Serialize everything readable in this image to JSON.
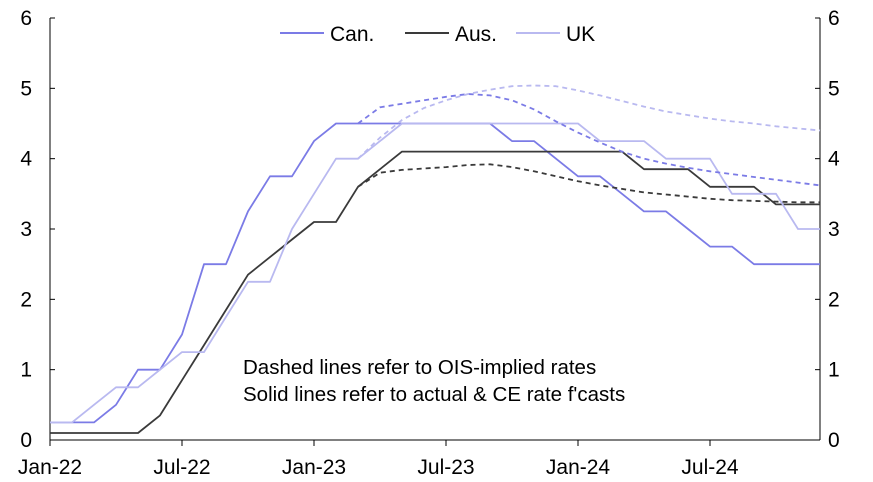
{
  "chart_data": {
    "type": "line",
    "title": "",
    "xlabel": "",
    "ylabel": "",
    "x_tick_labels": [
      "Jan-22",
      "Jul-22",
      "Jan-23",
      "Jul-23",
      "Jan-24",
      "Jul-24"
    ],
    "x_tick_months": [
      0,
      6,
      12,
      18,
      24,
      30
    ],
    "x_range_months": [
      0,
      35
    ],
    "ylim": [
      0,
      6
    ],
    "y_ticks": [
      "0",
      "1",
      "2",
      "3",
      "4",
      "5",
      "6"
    ],
    "legend": [
      "Can.",
      "Aus.",
      "UK"
    ],
    "legend_position": "top-center",
    "colors": {
      "can": "#7B7BE6",
      "aus": "#3a3a3a",
      "uk": "#B9B9F0",
      "axis": "#000000"
    },
    "note_lines": [
      "Dashed lines refer to OIS-implied rates",
      "Solid lines refer to actual & CE rate f'casts"
    ],
    "series": [
      {
        "name": "Can.",
        "key": "can",
        "style": "solid",
        "x": [
          0,
          1,
          2,
          3,
          4,
          5,
          6,
          7,
          8,
          9,
          10,
          11,
          12,
          13,
          14,
          15,
          16,
          17,
          18,
          19,
          20,
          21,
          22,
          23,
          24,
          25,
          26,
          27,
          28,
          29,
          30,
          31,
          32,
          33,
          34,
          35
        ],
        "values": [
          0.25,
          0.25,
          0.25,
          0.5,
          1.0,
          1.0,
          1.5,
          2.5,
          2.5,
          3.25,
          3.75,
          3.75,
          4.25,
          4.5,
          4.5,
          4.5,
          4.5,
          4.5,
          4.5,
          4.5,
          4.5,
          4.25,
          4.25,
          4.0,
          3.75,
          3.75,
          3.5,
          3.25,
          3.25,
          3.0,
          2.75,
          2.75,
          2.5,
          2.5,
          2.5,
          2.5
        ]
      },
      {
        "name": "Aus.",
        "key": "aus",
        "style": "solid",
        "x": [
          0,
          1,
          2,
          3,
          4,
          5,
          6,
          7,
          8,
          9,
          10,
          11,
          12,
          13,
          14,
          15,
          16,
          17,
          18,
          19,
          20,
          21,
          22,
          23,
          24,
          25,
          26,
          27,
          28,
          29,
          30,
          31,
          32,
          33,
          34,
          35
        ],
        "values": [
          0.1,
          0.1,
          0.1,
          0.1,
          0.1,
          0.35,
          0.85,
          1.35,
          1.85,
          2.35,
          2.6,
          2.85,
          3.1,
          3.1,
          3.6,
          3.85,
          4.1,
          4.1,
          4.1,
          4.1,
          4.1,
          4.1,
          4.1,
          4.1,
          4.1,
          4.1,
          4.1,
          3.85,
          3.85,
          3.85,
          3.6,
          3.6,
          3.6,
          3.35,
          3.35,
          3.35
        ]
      },
      {
        "name": "UK",
        "key": "uk",
        "style": "solid",
        "x": [
          0,
          1,
          2,
          3,
          4,
          5,
          6,
          7,
          8,
          9,
          10,
          11,
          12,
          13,
          14,
          15,
          16,
          17,
          18,
          19,
          20,
          21,
          22,
          23,
          24,
          25,
          26,
          27,
          28,
          29,
          30,
          31,
          32,
          33,
          34,
          35
        ],
        "values": [
          0.25,
          0.25,
          0.5,
          0.75,
          0.75,
          1.0,
          1.25,
          1.25,
          1.75,
          2.25,
          2.25,
          3.0,
          3.5,
          4.0,
          4.0,
          4.25,
          4.5,
          4.5,
          4.5,
          4.5,
          4.5,
          4.5,
          4.5,
          4.5,
          4.5,
          4.25,
          4.25,
          4.25,
          4.0,
          4.0,
          4.0,
          3.5,
          3.5,
          3.5,
          3.0,
          3.0
        ]
      },
      {
        "name": "Can. OIS",
        "key": "can",
        "style": "dashed",
        "x": [
          14,
          15,
          16,
          17,
          18,
          19,
          20,
          21,
          22,
          23,
          24,
          25,
          26,
          27,
          28,
          29,
          30,
          31,
          32,
          33,
          34,
          35
        ],
        "values": [
          4.5,
          4.73,
          4.78,
          4.83,
          4.88,
          4.92,
          4.9,
          4.83,
          4.7,
          4.53,
          4.37,
          4.23,
          4.1,
          4.0,
          3.93,
          3.87,
          3.82,
          3.78,
          3.74,
          3.7,
          3.66,
          3.62
        ]
      },
      {
        "name": "Aus. OIS",
        "key": "aus",
        "style": "dashed",
        "x": [
          14,
          15,
          16,
          17,
          18,
          19,
          20,
          21,
          22,
          23,
          24,
          25,
          26,
          27,
          28,
          29,
          30,
          31,
          32,
          33,
          34,
          35
        ],
        "values": [
          3.6,
          3.8,
          3.84,
          3.86,
          3.88,
          3.91,
          3.92,
          3.88,
          3.82,
          3.75,
          3.68,
          3.62,
          3.57,
          3.52,
          3.49,
          3.46,
          3.43,
          3.41,
          3.4,
          3.39,
          3.38,
          3.38
        ]
      },
      {
        "name": "UK OIS",
        "key": "uk",
        "style": "dashed",
        "x": [
          14,
          15,
          16,
          17,
          18,
          19,
          20,
          21,
          22,
          23,
          24,
          25,
          26,
          27,
          28,
          29,
          30,
          31,
          32,
          33,
          34,
          35
        ],
        "values": [
          4.0,
          4.3,
          4.55,
          4.72,
          4.83,
          4.92,
          4.98,
          5.03,
          5.04,
          5.03,
          4.97,
          4.9,
          4.82,
          4.74,
          4.67,
          4.62,
          4.57,
          4.53,
          4.5,
          4.46,
          4.43,
          4.4
        ]
      }
    ]
  }
}
